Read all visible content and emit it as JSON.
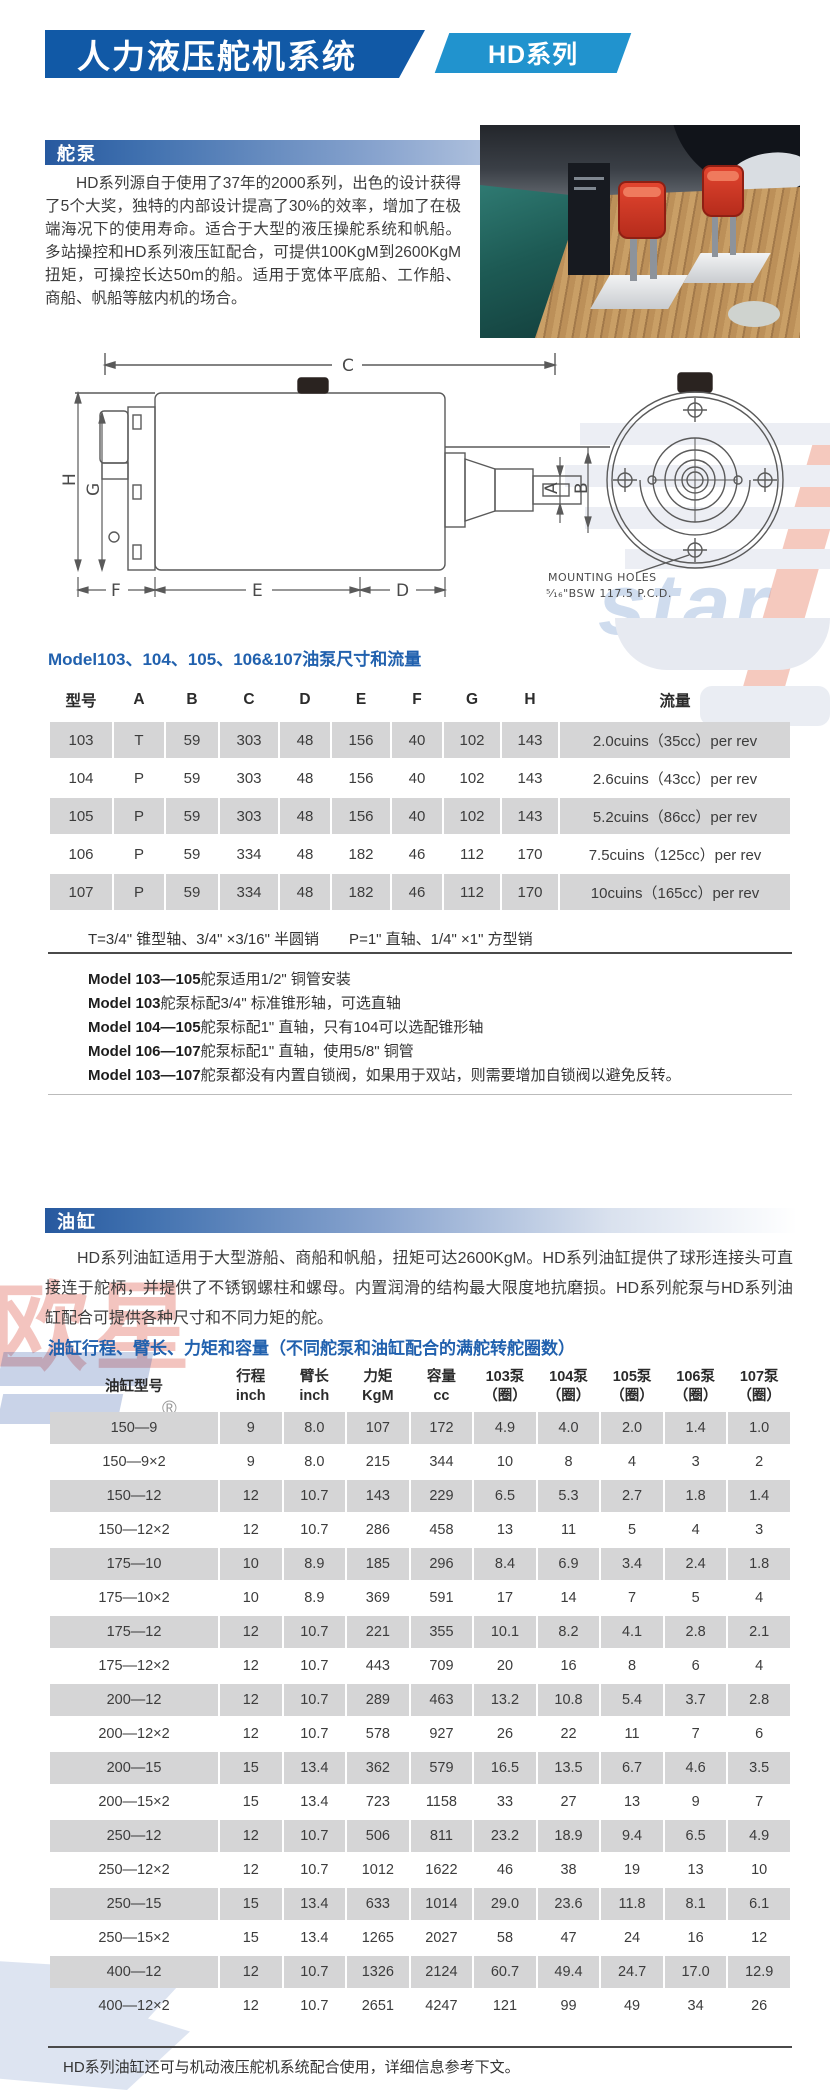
{
  "header": {
    "title": "人力液压舵机系统",
    "badge": "HD系列"
  },
  "colors": {
    "banner_blue": "#1159a6",
    "badge_blue": "#2193ce",
    "accent_blue": "#2161ae",
    "section_bar_blue": "#27599f",
    "table_row_gray": "#d5d5d6"
  },
  "watermarks": {
    "star": "star",
    "logo_cn": "欧星",
    "registered": "®"
  },
  "pump": {
    "section_title": "舵泵",
    "description": "HD系列源自于使用了37年的2000系列，出色的设计获得了5个大奖，独特的内部设计提高了30%的效率，增加了在极端海况下的使用寿命。适合于大型的液压操舵系统和帆船。多站操控和HD系列液压缸配合，可提供100KgM到2600KgM扭矩，可操控长达50m的船。适用于宽体平底船、工作船、商船、帆船等舷内机的场合。",
    "diagram": {
      "labels": {
        "c": "C",
        "h": "H",
        "g": "G",
        "a": "A",
        "b": "B",
        "f": "F",
        "e": "E",
        "d": "D"
      },
      "mounting_line1": "MOUNTING HOLES",
      "mounting_line2": "⁵⁄₁₆\"BSW 117.5 P.C.D."
    },
    "table_title": "Model103、104、105、106&107油泵尺寸和流量",
    "table": {
      "headers": [
        "型号",
        "A",
        "B",
        "C",
        "D",
        "E",
        "F",
        "G",
        "H",
        "流量"
      ],
      "rows": [
        [
          "103",
          "T",
          "59",
          "303",
          "48",
          "156",
          "40",
          "102",
          "143",
          "2.0cuins（35cc）per rev"
        ],
        [
          "104",
          "P",
          "59",
          "303",
          "48",
          "156",
          "40",
          "102",
          "143",
          "2.6cuins（43cc）per rev"
        ],
        [
          "105",
          "P",
          "59",
          "303",
          "48",
          "156",
          "40",
          "102",
          "143",
          "5.2cuins（86cc）per rev"
        ],
        [
          "106",
          "P",
          "59",
          "334",
          "48",
          "182",
          "46",
          "112",
          "170",
          "7.5cuins（125cc）per rev"
        ],
        [
          "107",
          "P",
          "59",
          "334",
          "48",
          "182",
          "46",
          "112",
          "170",
          "10cuins（165cc）per rev"
        ]
      ]
    },
    "shaft_note": "T=3/4\" 锥型轴、3/4\" ×3/16\" 半圆销　　P=1\" 直轴、1/4\" ×1\" 方型销",
    "notes": [
      {
        "b": "Model 103—105",
        "t": "舵泵适用1/2\" 铜管安装"
      },
      {
        "b": "Model 103",
        "t": "舵泵标配3/4\" 标准锥形轴，可选直轴"
      },
      {
        "b": "Model 104—105",
        "t": "舵泵标配1\" 直轴，只有104可以选配锥形轴"
      },
      {
        "b": "Model 106—107",
        "t": "舵泵标配1\" 直轴，使用5/8\" 铜管"
      },
      {
        "b": "Model 103—107",
        "t": "舵泵都没有内置自锁阀，如果用于双站，则需要增加自锁阀以避免反转。"
      }
    ]
  },
  "cylinder": {
    "section_title": "油缸",
    "description": "HD系列油缸适用于大型游船、商船和帆船，扭矩可达2600KgM。HD系列油缸提供了球形连接头可直接连于舵柄，并提供了不锈钢螺柱和螺母。内置润滑的结构最大限度地抗磨损。HD系列舵泵与HD系列油缸配合可提供各种尺寸和不同力矩的舵。",
    "table_title": "油缸行程、臂长、力矩和容量（不同舵泵和油缸配合的满舵转舵圈数）",
    "table": {
      "headers": [
        {
          "l1": "油缸型号",
          "l2": ""
        },
        {
          "l1": "行程",
          "l2": "inch"
        },
        {
          "l1": "臂长",
          "l2": "inch"
        },
        {
          "l1": "力矩",
          "l2": "KgM"
        },
        {
          "l1": "容量",
          "l2": "cc"
        },
        {
          "l1": "103泵",
          "l2": "（圈）"
        },
        {
          "l1": "104泵",
          "l2": "（圈）"
        },
        {
          "l1": "105泵",
          "l2": "（圈）"
        },
        {
          "l1": "106泵",
          "l2": "（圈）"
        },
        {
          "l1": "107泵",
          "l2": "（圈）"
        }
      ],
      "rows": [
        [
          "150—9",
          "9",
          "8.0",
          "107",
          "172",
          "4.9",
          "4.0",
          "2.0",
          "1.4",
          "1.0"
        ],
        [
          "150—9×2",
          "9",
          "8.0",
          "215",
          "344",
          "10",
          "8",
          "4",
          "3",
          "2"
        ],
        [
          "150—12",
          "12",
          "10.7",
          "143",
          "229",
          "6.5",
          "5.3",
          "2.7",
          "1.8",
          "1.4"
        ],
        [
          "150—12×2",
          "12",
          "10.7",
          "286",
          "458",
          "13",
          "11",
          "5",
          "4",
          "3"
        ],
        [
          "175—10",
          "10",
          "8.9",
          "185",
          "296",
          "8.4",
          "6.9",
          "3.4",
          "2.4",
          "1.8"
        ],
        [
          "175—10×2",
          "10",
          "8.9",
          "369",
          "591",
          "17",
          "14",
          "7",
          "5",
          "4"
        ],
        [
          "175—12",
          "12",
          "10.7",
          "221",
          "355",
          "10.1",
          "8.2",
          "4.1",
          "2.8",
          "2.1"
        ],
        [
          "175—12×2",
          "12",
          "10.7",
          "443",
          "709",
          "20",
          "16",
          "8",
          "6",
          "4"
        ],
        [
          "200—12",
          "12",
          "10.7",
          "289",
          "463",
          "13.2",
          "10.8",
          "5.4",
          "3.7",
          "2.8"
        ],
        [
          "200—12×2",
          "12",
          "10.7",
          "578",
          "927",
          "26",
          "22",
          "11",
          "7",
          "6"
        ],
        [
          "200—15",
          "15",
          "13.4",
          "362",
          "579",
          "16.5",
          "13.5",
          "6.7",
          "4.6",
          "3.5"
        ],
        [
          "200—15×2",
          "15",
          "13.4",
          "723",
          "1158",
          "33",
          "27",
          "13",
          "9",
          "7"
        ],
        [
          "250—12",
          "12",
          "10.7",
          "506",
          "811",
          "23.2",
          "18.9",
          "9.4",
          "6.5",
          "4.9"
        ],
        [
          "250—12×2",
          "12",
          "10.7",
          "1012",
          "1622",
          "46",
          "38",
          "19",
          "13",
          "10"
        ],
        [
          "250—15",
          "15",
          "13.4",
          "633",
          "1014",
          "29.0",
          "23.6",
          "11.8",
          "8.1",
          "6.1"
        ],
        [
          "250—15×2",
          "15",
          "13.4",
          "1265",
          "2027",
          "58",
          "47",
          "24",
          "16",
          "12"
        ],
        [
          "400—12",
          "12",
          "10.7",
          "1326",
          "2124",
          "60.7",
          "49.4",
          "24.7",
          "17.0",
          "12.9"
        ],
        [
          "400—12×2",
          "12",
          "10.7",
          "2651",
          "4247",
          "121",
          "99",
          "49",
          "34",
          "26"
        ]
      ]
    },
    "footer_note": "HD系列油缸还可与机动液压舵机系统配合使用，详细信息参考下文。"
  }
}
